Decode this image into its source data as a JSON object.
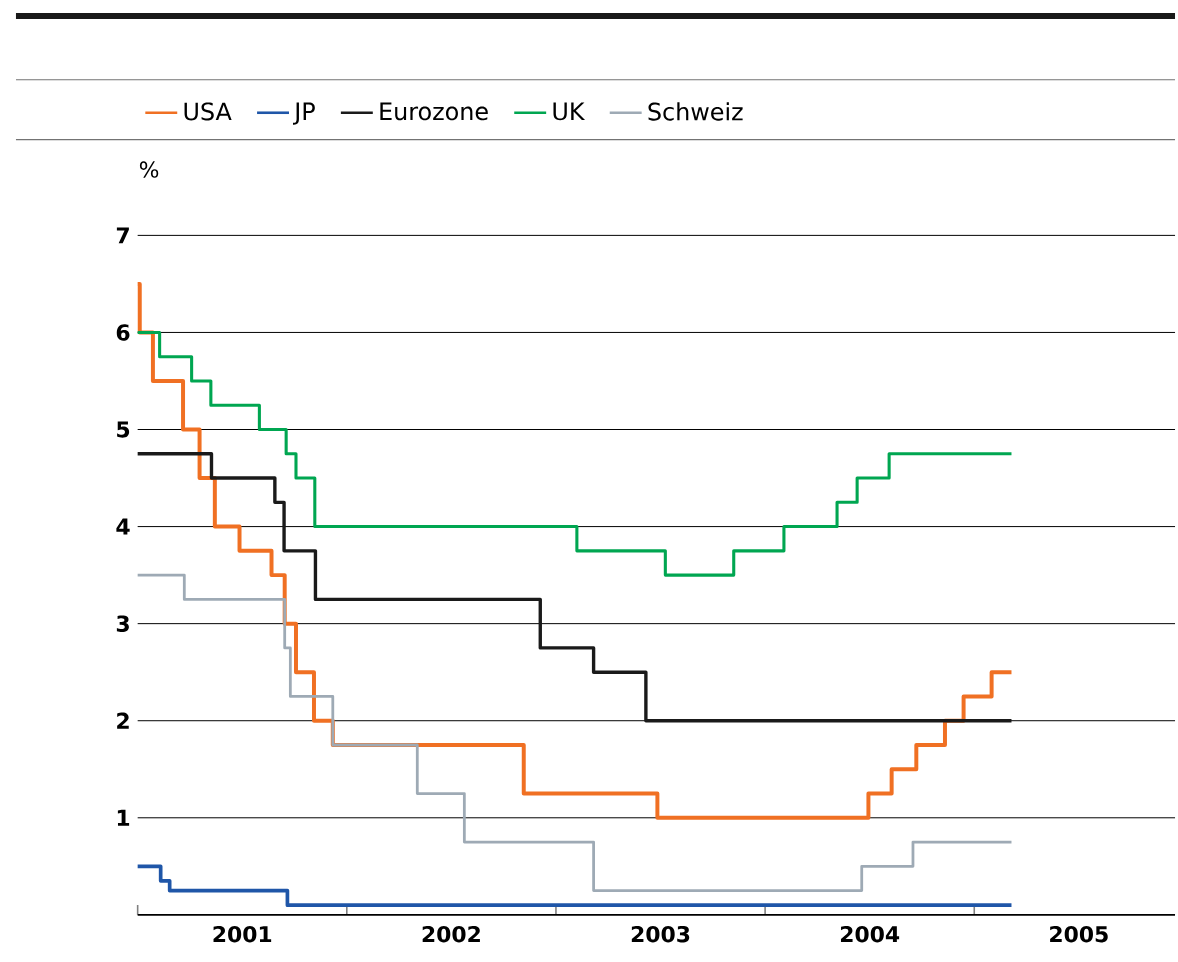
{
  "chart_data": {
    "type": "step",
    "ylabel": "%",
    "legend": "top",
    "grid": "y",
    "xlim": [
      2001,
      2005.96
    ],
    "ylim": [
      0,
      7
    ],
    "xticks": [
      {
        "value": 2001,
        "label": null
      },
      {
        "value": 2002,
        "label": null
      },
      {
        "value": 2003,
        "label": null
      },
      {
        "value": 2004,
        "label": null
      },
      {
        "value": 2005,
        "label": null
      },
      {
        "value": 2001.5,
        "label": "2001"
      },
      {
        "value": 2002.5,
        "label": "2002"
      },
      {
        "value": 2003.5,
        "label": "2003"
      },
      {
        "value": 2004.5,
        "label": "2004"
      },
      {
        "value": 2005.5,
        "label": "2005"
      }
    ],
    "yticks": [
      1,
      2,
      3,
      4,
      5,
      6,
      7
    ],
    "series": [
      {
        "name": "USA",
        "color": "#f07023",
        "x": [
          2001,
          2001.01,
          2001.073,
          2001.217,
          2001.296,
          2001.369,
          2001.487,
          2001.64,
          2001.703,
          2001.757,
          2001.843,
          2001.933,
          2002.846,
          2003.485,
          2004.494,
          2004.605,
          2004.723,
          2004.86,
          2004.949,
          2005.083,
          2005.178
        ],
        "values": [
          6.5,
          6,
          5.5,
          5,
          4.5,
          4,
          3.75,
          3.5,
          3,
          2.5,
          2,
          1.75,
          1.25,
          1,
          1.25,
          1.5,
          1.75,
          2,
          2.25,
          2.5,
          2.5
        ]
      },
      {
        "name": "JP",
        "color": "#1f56a8",
        "x": [
          2001,
          2001.11,
          2001.153,
          2001.716,
          2005.178
        ],
        "values": [
          0.5,
          0.35,
          0.25,
          0.1,
          0.1
        ]
      },
      {
        "name": "Eurozone",
        "color": "#1a1a1a",
        "x": [
          2001,
          2001.353,
          2001.656,
          2001.7,
          2001.85,
          2002.925,
          2003.18,
          2003.43,
          2005.178
        ],
        "values": [
          4.75,
          4.5,
          4.25,
          3.75,
          3.25,
          2.75,
          2.5,
          2,
          2
        ]
      },
      {
        "name": "UK",
        "color": "#00a651",
        "x": [
          2001,
          2001.105,
          2001.258,
          2001.35,
          2001.582,
          2001.71,
          2001.757,
          2001.847,
          2003.1,
          2003.523,
          2003.85,
          2004.09,
          2004.344,
          2004.44,
          2004.593,
          2005.178
        ],
        "values": [
          6,
          5.75,
          5.5,
          5.25,
          5,
          4.75,
          4.5,
          4,
          3.75,
          3.5,
          3.75,
          4,
          4.25,
          4.5,
          4.75,
          4.75
        ]
      },
      {
        "name": "Schweiz",
        "color": "#9eaab5",
        "x": [
          2001,
          2001.223,
          2001.703,
          2001.73,
          2001.933,
          2002.337,
          2002.562,
          2003.18,
          2004.462,
          2004.707,
          2005.178
        ],
        "values": [
          3.5,
          3.25,
          2.75,
          2.25,
          1.75,
          1.25,
          0.75,
          0.25,
          0.5,
          0.75,
          0.75
        ]
      }
    ]
  }
}
